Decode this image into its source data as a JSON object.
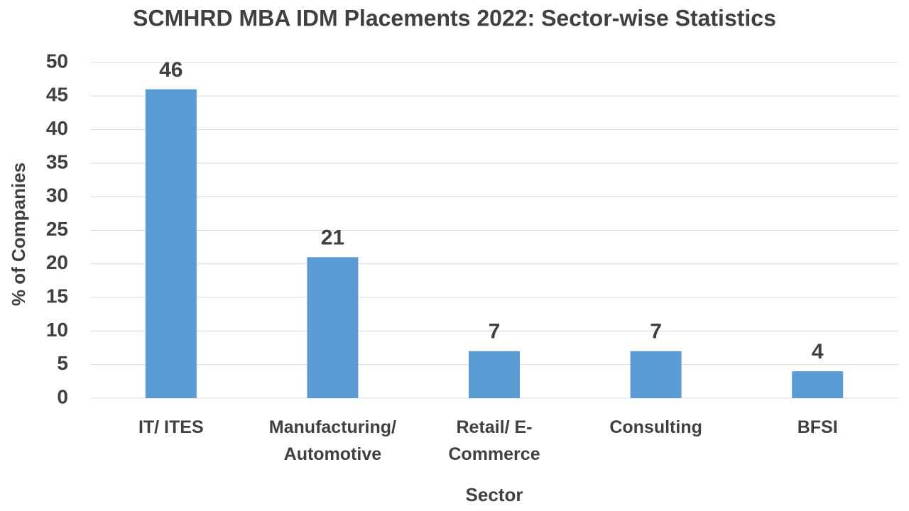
{
  "chart_data": {
    "type": "bar",
    "title": "SCMHRD MBA IDM Placements 2022: Sector-wise Statistics",
    "x_label": "Sector",
    "y_label": "% of Companies",
    "categories": [
      "IT/ ITES",
      "Manufacturing/ Automotive",
      "Retail/ E-Commerce",
      "Consulting",
      "BFSI"
    ],
    "values": [
      46,
      21,
      7,
      7,
      4
    ],
    "color": "#5b9bd5",
    "ylim": [
      0,
      50
    ],
    "yticks": [
      0,
      5,
      10,
      15,
      20,
      25,
      30,
      35,
      40,
      45,
      50
    ],
    "grid": true
  }
}
